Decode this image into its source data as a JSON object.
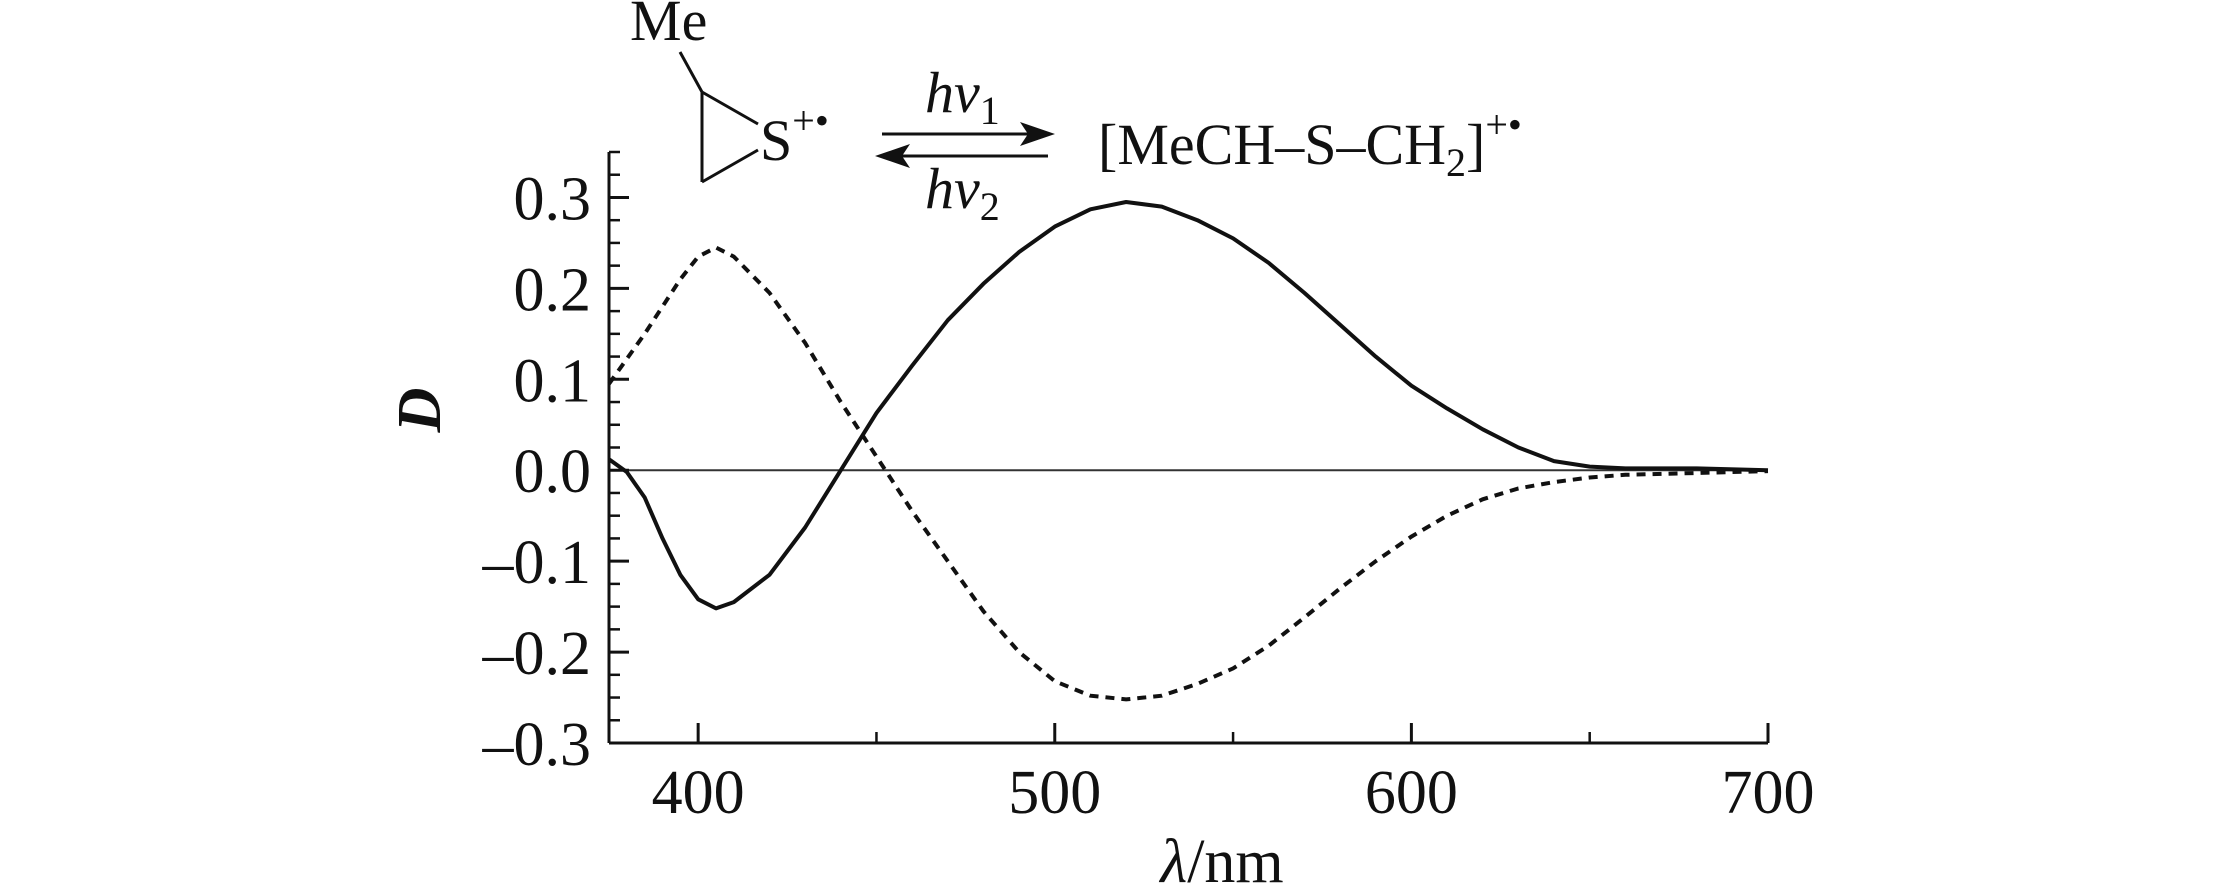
{
  "chart_data": {
    "type": "line",
    "xlabel_symbol": "λ",
    "xlabel_unit": "/nm",
    "ylabel": "D",
    "xlim": [
      375,
      700
    ],
    "ylim": [
      -0.3,
      0.35
    ],
    "x_ticks": [
      400,
      500,
      600,
      700
    ],
    "x_tick_labels": [
      "400",
      "500",
      "600",
      "700"
    ],
    "y_ticks": [
      0.3,
      0.2,
      0.1,
      0.0,
      -0.1,
      -0.2,
      -0.3
    ],
    "y_tick_labels": [
      "0.3",
      "0.2",
      "0.1",
      "0.0",
      "–0.1",
      "–0.2",
      "–0.3"
    ],
    "zero_line": true,
    "grid": false,
    "legend": "none",
    "series": [
      {
        "style": "solid",
        "color": "#111111",
        "points": [
          [
            375,
            0.012
          ],
          [
            380,
            -0.002
          ],
          [
            385,
            -0.03
          ],
          [
            390,
            -0.075
          ],
          [
            395,
            -0.115
          ],
          [
            400,
            -0.142
          ],
          [
            405,
            -0.152
          ],
          [
            410,
            -0.145
          ],
          [
            420,
            -0.115
          ],
          [
            430,
            -0.063
          ],
          [
            440,
            0.0
          ],
          [
            450,
            0.063
          ],
          [
            460,
            0.115
          ],
          [
            470,
            0.165
          ],
          [
            480,
            0.205
          ],
          [
            490,
            0.24
          ],
          [
            500,
            0.268
          ],
          [
            510,
            0.287
          ],
          [
            520,
            0.295
          ],
          [
            530,
            0.29
          ],
          [
            540,
            0.275
          ],
          [
            550,
            0.255
          ],
          [
            560,
            0.228
          ],
          [
            570,
            0.195
          ],
          [
            580,
            0.16
          ],
          [
            590,
            0.125
          ],
          [
            600,
            0.093
          ],
          [
            610,
            0.068
          ],
          [
            620,
            0.045
          ],
          [
            630,
            0.025
          ],
          [
            640,
            0.01
          ],
          [
            650,
            0.004
          ],
          [
            660,
            0.002
          ],
          [
            680,
            0.002
          ],
          [
            700,
            0.0
          ]
        ]
      },
      {
        "style": "dashed",
        "color": "#111111",
        "points": [
          [
            375,
            0.095
          ],
          [
            385,
            0.15
          ],
          [
            395,
            0.21
          ],
          [
            400,
            0.235
          ],
          [
            405,
            0.245
          ],
          [
            410,
            0.235
          ],
          [
            420,
            0.195
          ],
          [
            430,
            0.14
          ],
          [
            440,
            0.075
          ],
          [
            450,
            0.015
          ],
          [
            460,
            -0.045
          ],
          [
            470,
            -0.1
          ],
          [
            480,
            -0.155
          ],
          [
            490,
            -0.2
          ],
          [
            500,
            -0.232
          ],
          [
            510,
            -0.248
          ],
          [
            520,
            -0.252
          ],
          [
            530,
            -0.248
          ],
          [
            540,
            -0.235
          ],
          [
            550,
            -0.218
          ],
          [
            560,
            -0.193
          ],
          [
            570,
            -0.162
          ],
          [
            580,
            -0.13
          ],
          [
            590,
            -0.1
          ],
          [
            600,
            -0.073
          ],
          [
            610,
            -0.05
          ],
          [
            620,
            -0.032
          ],
          [
            630,
            -0.02
          ],
          [
            640,
            -0.013
          ],
          [
            650,
            -0.008
          ],
          [
            660,
            -0.005
          ],
          [
            680,
            -0.003
          ],
          [
            700,
            -0.001
          ]
        ]
      }
    ],
    "annotation": {
      "substituent": "Me",
      "ring_atom": "S",
      "ring_charge": "+•",
      "forward_label": "hv",
      "forward_subscript": "1",
      "reverse_label": "hv",
      "reverse_subscript": "2",
      "product_main": "[MeCH–S–CH",
      "product_subscript": "2",
      "product_close": "]",
      "product_charge": "+•"
    }
  }
}
